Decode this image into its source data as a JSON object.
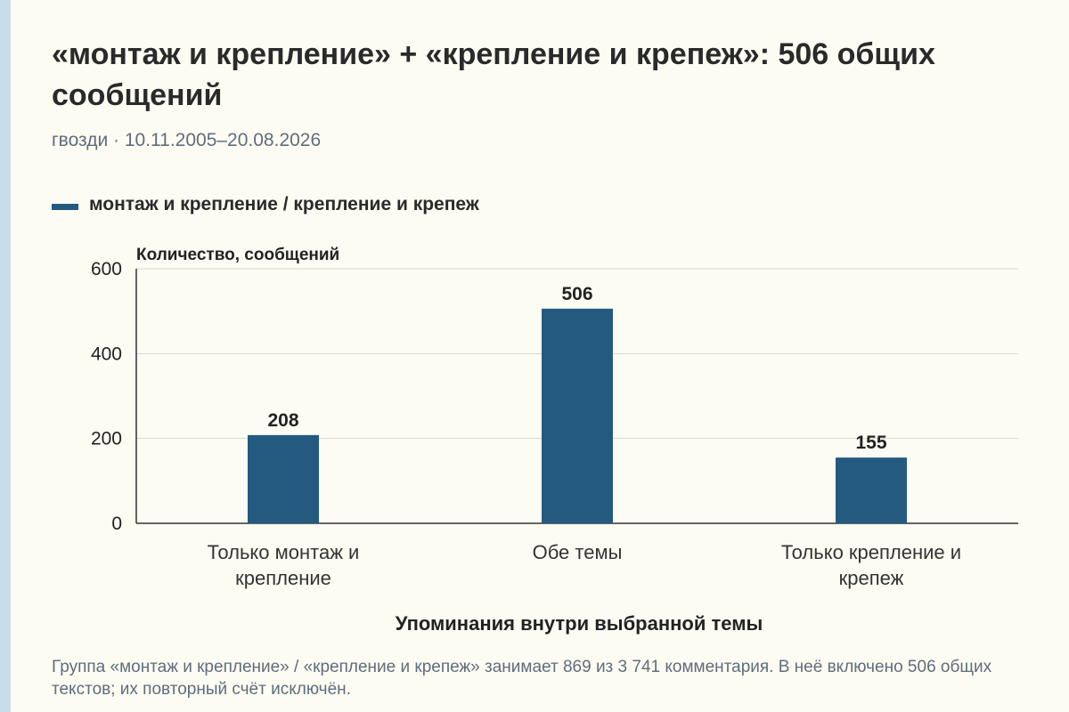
{
  "header": {
    "title": "«монтаж и крепление» + «крепление и крепеж»: 506 общих сообщений",
    "subtitle": "гвозди · 10.11.2005–20.08.2026"
  },
  "legend": {
    "label": "монтаж и крепление / крепление и крепеж",
    "color": "#245a80"
  },
  "footnote": "Группа «монтаж и крепление» / «крепление и крепеж» занимает 869 из 3 741 комментария. В неё включено 506 общих текстов; их повторный счёт исключён.",
  "chart_data": {
    "type": "bar",
    "categories": [
      [
        "Только монтаж и",
        "крепление"
      ],
      [
        "Обе темы"
      ],
      [
        "Только крепление и",
        "крепеж"
      ]
    ],
    "series": [
      {
        "name": "монтаж и крепление / крепление и крепеж",
        "values": [
          208,
          506,
          155
        ],
        "color": "#245a80"
      }
    ],
    "ylabel": "Количество, сообщений",
    "xlabel": "Упоминания внутри выбранной темы",
    "ylim": [
      0,
      600
    ],
    "yticks": [
      0,
      200,
      400,
      600
    ],
    "grid": true,
    "legend_position": "top-left"
  }
}
